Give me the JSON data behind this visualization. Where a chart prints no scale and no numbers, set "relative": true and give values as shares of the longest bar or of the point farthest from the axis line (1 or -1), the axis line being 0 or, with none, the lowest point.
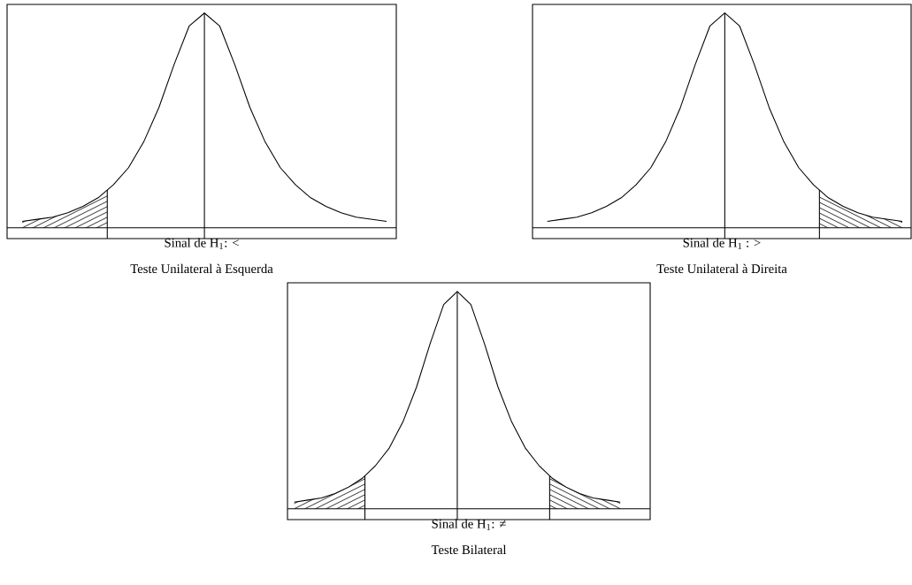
{
  "chart_data": [
    {
      "type": "line",
      "relative": true,
      "xlabel": "Sinal de H$_{1}$: <",
      "annotations": [
        "Teste Unilateral à Esquerda"
      ],
      "categories": [
        null,
        null,
        null,
        null,
        null,
        null,
        null,
        null,
        null,
        null,
        null,
        null,
        null,
        null,
        null,
        null,
        null,
        null,
        null,
        null,
        null,
        null,
        null,
        null,
        null
      ],
      "series": [
        {
          "color": "#000000",
          "values": [
            0.03,
            0.04,
            0.05,
            0.07,
            0.1,
            0.14,
            0.2,
            0.28,
            0.4,
            0.56,
            0.76,
            0.94,
            1,
            0.94,
            0.76,
            0.56,
            0.4,
            0.28,
            0.2,
            0.14,
            0.1,
            0.07,
            0.05,
            0.04,
            0.03
          ]
        }
      ]
    },
    {
      "type": "line",
      "relative": true,
      "xlabel": "Sinal de H$_{1}$ : >",
      "annotations": [
        "Teste Unilateral à Direita"
      ],
      "categories": [
        null,
        null,
        null,
        null,
        null,
        null,
        null,
        null,
        null,
        null,
        null,
        null,
        null,
        null,
        null,
        null,
        null,
        null,
        null,
        null,
        null,
        null,
        null,
        null,
        null
      ],
      "series": [
        {
          "color": "#000000",
          "values": [
            0.03,
            0.04,
            0.05,
            0.07,
            0.1,
            0.14,
            0.2,
            0.28,
            0.4,
            0.56,
            0.76,
            0.94,
            1,
            0.94,
            0.76,
            0.56,
            0.4,
            0.28,
            0.2,
            0.14,
            0.1,
            0.07,
            0.05,
            0.04,
            0.03
          ]
        }
      ]
    },
    {
      "type": "line",
      "relative": true,
      "xlabel": "Sinal de H$_{1}$:  ≠",
      "annotations": [
        "Teste Bilateral"
      ],
      "categories": [
        null,
        null,
        null,
        null,
        null,
        null,
        null,
        null,
        null,
        null,
        null,
        null,
        null,
        null,
        null,
        null,
        null,
        null,
        null,
        null,
        null,
        null,
        null,
        null,
        null
      ],
      "series": [
        {
          "color": "#000000",
          "values": [
            0.03,
            0.04,
            0.05,
            0.07,
            0.1,
            0.14,
            0.2,
            0.28,
            0.4,
            0.56,
            0.76,
            0.94,
            1,
            0.94,
            0.76,
            0.56,
            0.4,
            0.28,
            0.2,
            0.14,
            0.1,
            0.07,
            0.05,
            0.04,
            0.03
          ]
        }
      ]
    }
  ]
}
